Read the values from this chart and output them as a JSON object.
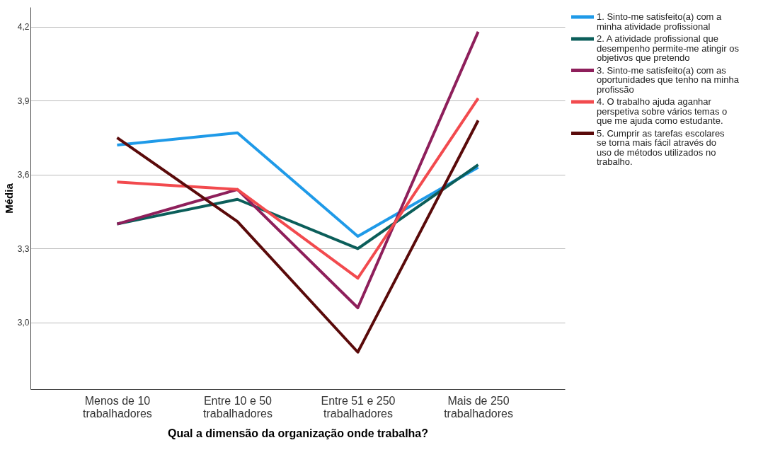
{
  "chart_data": {
    "type": "line",
    "xlabel": "Qual a dimensão da organização onde trabalha?",
    "ylabel": "Média",
    "categories": [
      "Menos de 10 trabalhadores",
      "Entre 10 e 50 trabalhadores",
      "Entre 51 e 250 trabalhadores",
      "Mais de 250 trabalhadores"
    ],
    "series": [
      {
        "name": "1. Sinto-me satisfeito(a) com a minha atividade profissional",
        "color": "#1f9ae8",
        "values": [
          3.72,
          3.77,
          3.35,
          3.63
        ]
      },
      {
        "name": "2. A atividade profissional que desempenho permite-me atingir os objetivos que pretendo",
        "color": "#0b5e5a",
        "values": [
          3.4,
          3.5,
          3.3,
          3.64
        ]
      },
      {
        "name": "3. Sinto-me satisfeito(a) com as oportunidades que tenho na minha profissão",
        "color": "#8e1f5b",
        "values": [
          3.4,
          3.54,
          3.06,
          4.18
        ]
      },
      {
        "name": "4. O trabalho ajuda aganhar perspetiva sobre vários temas o que me ajuda como estudante.",
        "color": "#f24a4e",
        "values": [
          3.57,
          3.54,
          3.18,
          3.91
        ]
      },
      {
        "name": "5. Cumprir as tarefas escolares se torna mais fácil através do uso de métodos utilizados no trabalho.",
        "color": "#5a0a0a",
        "values": [
          3.75,
          3.41,
          2.88,
          3.82
        ]
      }
    ],
    "ylim": [
      2.73,
      4.28
    ],
    "yticks": [
      {
        "value": 3.0,
        "label": "3,0"
      },
      {
        "value": 3.3,
        "label": "3,3"
      },
      {
        "value": 3.6,
        "label": "3,6"
      },
      {
        "value": 3.9,
        "label": "3,9"
      },
      {
        "value": 4.2,
        "label": "4,2"
      }
    ],
    "grid": "y",
    "legend": "right",
    "marker": "none",
    "line_style": "solid"
  }
}
